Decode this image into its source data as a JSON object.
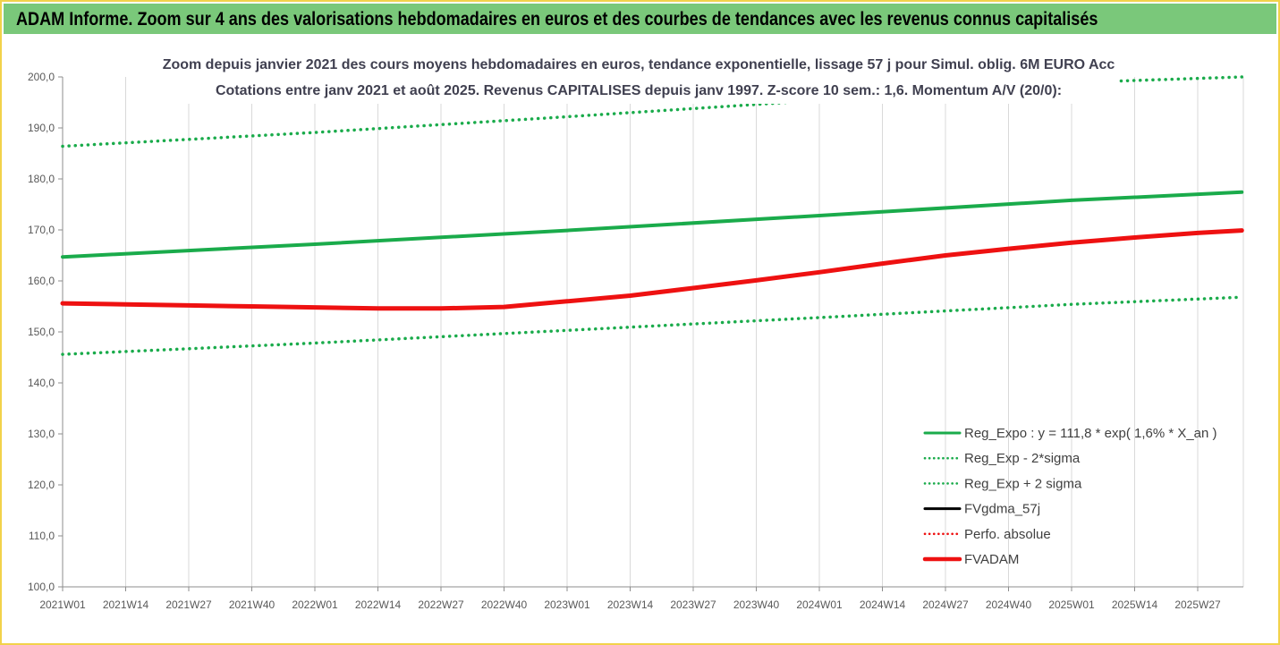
{
  "header": {
    "title": "ADAM Informe. Zoom sur 4 ans des valorisations hebdomadaires en euros et des courbes de tendances avec les revenus connus capitalisés"
  },
  "chart_data": {
    "type": "line",
    "title_line1": "Zoom depuis janvier 2021 des cours moyens hebdomadaires en euros, tendance exponentielle, lissage 57 j pour Simul. oblig. 6M EURO Acc",
    "title_line2": "Cotations entre janv 2021 et août 2025. Revenus CAPITALISES depuis janv 1997. Z-score 10 sem.: 1,6. Momentum A/V (20/0):",
    "ylim": [
      100,
      200
    ],
    "y_ticks": [
      "100,0",
      "110,0",
      "120,0",
      "130,0",
      "140,0",
      "150,0",
      "160,0",
      "170,0",
      "180,0",
      "190,0",
      "200,0"
    ],
    "x_labels": [
      "2021W01",
      "2021W14",
      "2021W27",
      "2021W40",
      "2022W01",
      "2022W14",
      "2022W27",
      "2022W40",
      "2023W01",
      "2023W14",
      "2023W27",
      "2023W40",
      "2024W01",
      "2024W14",
      "2024W27",
      "2024W40",
      "2025W01",
      "2025W14",
      "2025W27"
    ],
    "x_end": 18.7,
    "grid": "vertical",
    "legend_position": "bottom-right",
    "series": [
      {
        "name": "Reg_Expo : y = 111,8 * exp( 1,6% *  X_an )",
        "color": "#1aab4b",
        "style": "solid",
        "x": [
          0,
          4,
          8,
          12,
          16,
          18.7
        ],
        "values": [
          164.7,
          167.2,
          169.9,
          172.8,
          175.8,
          177.4
        ]
      },
      {
        "name": "Reg_Exp - 2*sigma",
        "color": "#1aab4b",
        "style": "dotted",
        "x": [
          0,
          4,
          8,
          12,
          16,
          18.7
        ],
        "values": [
          145.6,
          147.8,
          150.3,
          152.8,
          155.4,
          156.8
        ]
      },
      {
        "name": "Reg_Exp + 2 sigma",
        "color": "#1aab4b",
        "style": "dotted",
        "x": [
          0,
          4,
          8,
          12,
          16,
          18.7
        ],
        "values": [
          186.4,
          189.1,
          192.2,
          195.4,
          198.9,
          200.0
        ]
      },
      {
        "name": "FVgdma_57j",
        "color": "#000000",
        "style": "solid",
        "x": [],
        "values": []
      },
      {
        "name": "Perfo. absolue",
        "color": "#ee1111",
        "style": "dotted",
        "x": [],
        "values": []
      },
      {
        "name": "FVADAM",
        "color": "#ee1111",
        "style": "thick",
        "x": [
          0,
          1,
          2,
          3,
          4,
          5,
          6,
          7,
          8,
          9,
          10,
          11,
          12,
          13,
          14,
          15,
          16,
          17,
          18,
          18.7
        ],
        "values": [
          155.6,
          155.4,
          155.2,
          155.0,
          154.8,
          154.6,
          154.6,
          154.9,
          156.0,
          157.1,
          158.6,
          160.1,
          161.7,
          163.4,
          165.0,
          166.3,
          167.5,
          168.5,
          169.4,
          169.9
        ]
      }
    ]
  }
}
